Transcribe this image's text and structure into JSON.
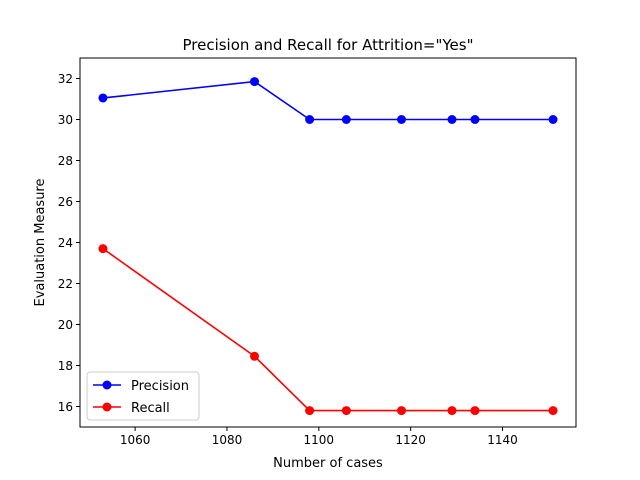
{
  "chart_data": {
    "type": "line",
    "title": "Precision and Recall for Attrition=\"Yes\"",
    "xlabel": "Number of cases",
    "ylabel": "Evaluation Measure",
    "xlim": [
      1048,
      1156
    ],
    "ylim": [
      15.0,
      33.0
    ],
    "x_ticks": [
      1060,
      1080,
      1100,
      1120,
      1140
    ],
    "y_ticks": [
      16,
      18,
      20,
      22,
      24,
      26,
      28,
      30,
      32
    ],
    "grid": false,
    "legend_position": "lower-left",
    "series": [
      {
        "name": "Precision",
        "color": "#0000ff",
        "x": [
          1053,
          1086,
          1098,
          1106,
          1118,
          1129,
          1134,
          1151
        ],
        "y": [
          31.05,
          31.85,
          30.0,
          30.0,
          30.0,
          30.0,
          30.0,
          30.0
        ]
      },
      {
        "name": "Recall",
        "color": "#ff0000",
        "x": [
          1053,
          1086,
          1098,
          1106,
          1118,
          1129,
          1134,
          1151
        ],
        "y": [
          23.7,
          18.45,
          15.8,
          15.8,
          15.8,
          15.8,
          15.8,
          15.8
        ]
      }
    ]
  }
}
